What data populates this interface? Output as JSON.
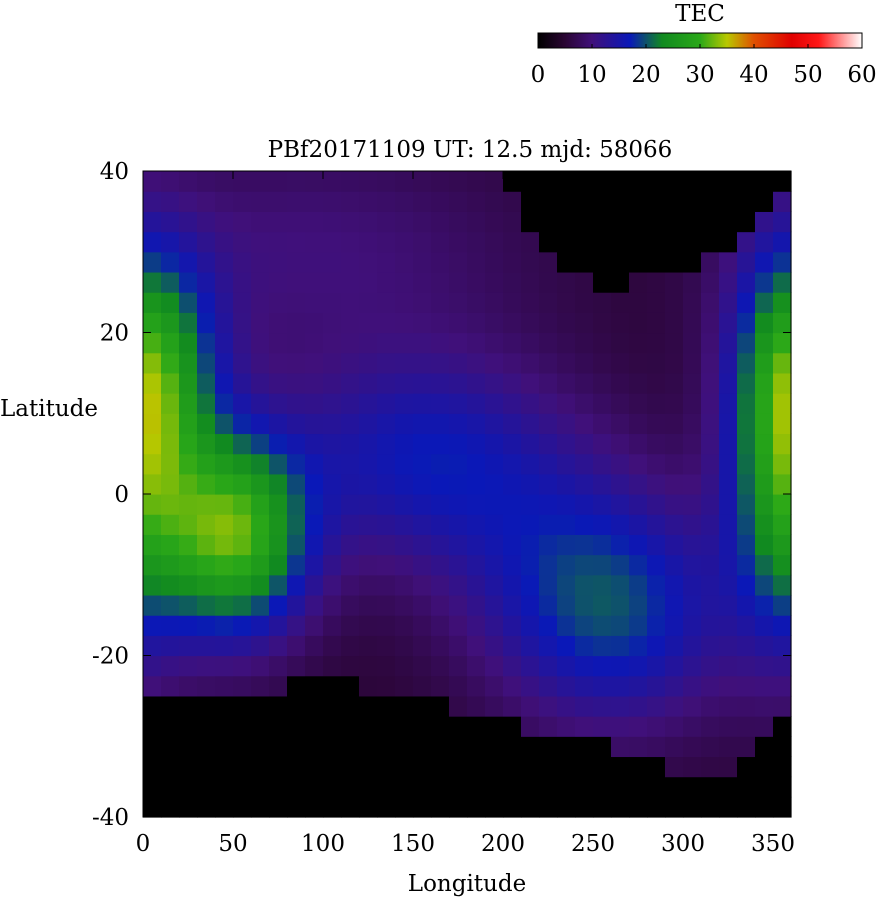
{
  "chart_data": {
    "type": "heatmap",
    "title": "PBf20171109  UT: 12.5  mjd: 58066",
    "xlabel": "Longitude",
    "ylabel": "Latitude",
    "xlim": [
      0,
      360
    ],
    "ylim": [
      -40,
      40
    ],
    "xticks": [
      "0",
      "50",
      "100",
      "150",
      "200",
      "250",
      "300",
      "350"
    ],
    "yticks": [
      "-40",
      "-20",
      "0",
      "20",
      "40"
    ],
    "grid": false,
    "cell_size_deg": [
      10,
      2.5
    ],
    "no_data_value": 0,
    "blobs": [
      {
        "lon": 50,
        "lat": -5,
        "sigma_lon": 30,
        "sigma_lat": 9,
        "value": 26
      },
      {
        "lon": 10,
        "lat": 15,
        "sigma_lon": 25,
        "sigma_lat": 10,
        "value": 14
      },
      {
        "lon": 355,
        "lat": 5,
        "sigma_lon": 22,
        "sigma_lat": 16,
        "value": 18
      },
      {
        "lon": 150,
        "lat": 5,
        "sigma_lon": 50,
        "sigma_lat": 9,
        "value": 10
      },
      {
        "lon": 265,
        "lat": -15,
        "sigma_lon": 45,
        "sigma_lat": 10,
        "value": 12
      },
      {
        "lon": 220,
        "lat": -5,
        "sigma_lon": 50,
        "sigma_lat": 12,
        "value": 6
      },
      {
        "lon": 90,
        "lat": 30,
        "sigma_lon": 90,
        "sigma_lat": 10,
        "value": 5
      }
    ],
    "base_value": 5,
    "void_mask": {
      "north_boundary_lat": [
        [
          0,
          40
        ],
        [
          200,
          40
        ],
        [
          210,
          34
        ],
        [
          220,
          30
        ],
        [
          230,
          28
        ],
        [
          250,
          26
        ],
        [
          270,
          26
        ],
        [
          290,
          27
        ],
        [
          320,
          30
        ],
        [
          340,
          34
        ],
        [
          360,
          38
        ]
      ],
      "south_boundary_lat": [
        [
          0,
          -26
        ],
        [
          50,
          -25
        ],
        [
          100,
          -23
        ],
        [
          150,
          -25
        ],
        [
          200,
          -28
        ],
        [
          240,
          -30
        ],
        [
          280,
          -32
        ],
        [
          310,
          -36
        ],
        [
          340,
          -32
        ],
        [
          360,
          -27
        ]
      ]
    },
    "colorbar": {
      "label": "TEC",
      "min": 0,
      "max": 60,
      "ticks": [
        "0",
        "10",
        "20",
        "30",
        "40",
        "50",
        "60"
      ],
      "stops": [
        {
          "v": 0,
          "color": "#000000"
        },
        {
          "v": 5,
          "color": "#2a0533"
        },
        {
          "v": 10,
          "color": "#40107a"
        },
        {
          "v": 17,
          "color": "#0a18b8"
        },
        {
          "v": 23,
          "color": "#118a20"
        },
        {
          "v": 30,
          "color": "#2aa818"
        },
        {
          "v": 35,
          "color": "#b8c800"
        },
        {
          "v": 40,
          "color": "#e05000"
        },
        {
          "v": 47,
          "color": "#e00000"
        },
        {
          "v": 52,
          "color": "#ff1818"
        },
        {
          "v": 60,
          "color": "#ffffff"
        }
      ]
    }
  }
}
